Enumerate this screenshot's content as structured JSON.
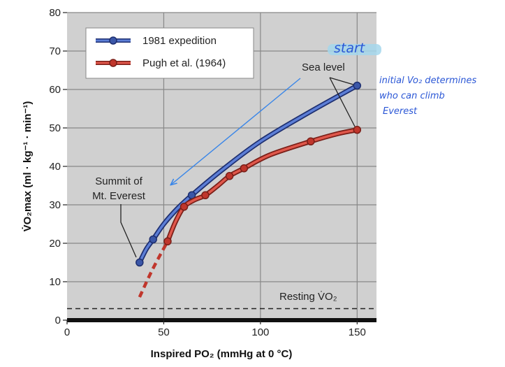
{
  "chart_data": {
    "type": "line",
    "xlabel": "Inspired PO₂ (mmHg at 0 °C)",
    "ylabel": "V̇O₂max (ml · kg⁻¹ · min⁻¹)",
    "xlim": [
      0,
      160
    ],
    "ylim": [
      0,
      80
    ],
    "xticks": [
      "0",
      "50",
      "100",
      "150"
    ],
    "yticks": [
      "0",
      "10",
      "20",
      "30",
      "40",
      "50",
      "60",
      "70",
      "80"
    ],
    "grid": true,
    "legend_position": "top-left",
    "series": [
      {
        "name": "1981 expedition",
        "color": "#3b57a8",
        "x": [
          37.5,
          44.5,
          64.5,
          150
        ],
        "y": [
          15,
          21,
          32.5,
          61
        ],
        "curve_x": [
          37.5,
          41,
          44.5,
          50,
          57,
          64.5,
          80,
          100,
          125,
          150
        ],
        "curve_y": [
          15,
          18.5,
          21,
          25,
          29,
          32.5,
          39,
          46.5,
          54,
          61
        ]
      },
      {
        "name": "Pugh et al. (1964)",
        "color": "#c0362c",
        "x": [
          52,
          60.5,
          71.5,
          84,
          91.5,
          126,
          150
        ],
        "y": [
          20.5,
          29.5,
          32.5,
          37.5,
          39.5,
          46.5,
          49.5
        ],
        "curve_x": [
          52,
          56,
          60.5,
          66,
          71.5,
          78,
          84,
          91.5,
          105,
          126,
          140,
          150
        ],
        "curve_y": [
          20.5,
          25.5,
          29.5,
          31.3,
          32.5,
          35,
          37.5,
          39.5,
          43,
          46.5,
          48.5,
          49.5
        ],
        "dashed_x": [
          37.5,
          44,
          52
        ],
        "dashed_y": [
          6,
          13,
          20.5
        ]
      }
    ],
    "reference_line": {
      "label": "Resting V̇O₂",
      "y": 3
    },
    "annotations": {
      "summit": [
        "Summit of",
        "Mt. Everest"
      ],
      "sea_level": "Sea level",
      "start": "start",
      "side_note": [
        "initial Vo₂ determines",
        "who can climb",
        "Everest"
      ]
    }
  }
}
